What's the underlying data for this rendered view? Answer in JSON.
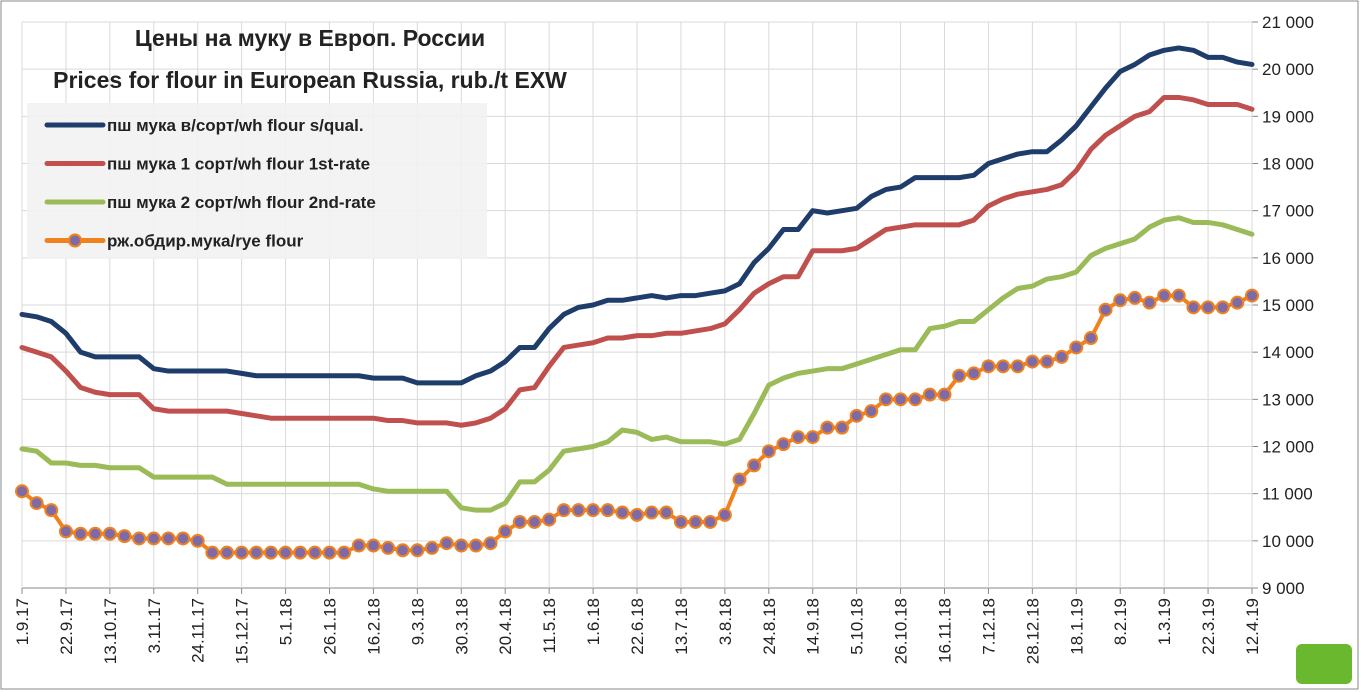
{
  "chart_data": {
    "type": "line",
    "title": "Цены на муку в Европ. России",
    "subtitle": "Prices for flour in European Russia, rub./t EXW",
    "categories": [
      "1.9.17",
      null,
      null,
      "22.9.17",
      null,
      null,
      "13.10.17",
      null,
      null,
      "3.11.17",
      null,
      null,
      "24.11.17",
      null,
      null,
      "15.12.17",
      null,
      null,
      "5.1.18",
      null,
      null,
      "26.1.18",
      null,
      null,
      "16.2.18",
      null,
      null,
      "9.3.18",
      null,
      null,
      "30.3.18",
      null,
      null,
      "20.4.18",
      null,
      null,
      "11.5.18",
      null,
      null,
      "1.6.18",
      null,
      null,
      "22.6.18",
      null,
      null,
      "13.7.18",
      null,
      null,
      "3.8.18",
      null,
      null,
      "24.8.18",
      null,
      null,
      "14.9.18",
      null,
      null,
      "5.10.18",
      null,
      null,
      "26.10.18",
      null,
      null,
      "16.11.18",
      null,
      null,
      "7.12.18",
      null,
      null,
      "28.12.18",
      null,
      null,
      "18.1.19",
      null,
      null,
      "8.2.19",
      null,
      null,
      "1.3.19",
      null,
      null,
      "22.3.19",
      null,
      null,
      "12.4.19"
    ],
    "series": [
      {
        "name": "пш мука в/сорт/wh flour s/qual.",
        "color": "#1f3d6b",
        "values": [
          14800,
          14750,
          14650,
          14400,
          14000,
          13900,
          13900,
          13900,
          13900,
          13650,
          13600,
          13600,
          13600,
          13600,
          13600,
          13550,
          13500,
          13500,
          13500,
          13500,
          13500,
          13500,
          13500,
          13500,
          13450,
          13450,
          13450,
          13350,
          13350,
          13350,
          13350,
          13500,
          13600,
          13800,
          14100,
          14100,
          14500,
          14800,
          14950,
          15000,
          15100,
          15100,
          15150,
          15200,
          15150,
          15200,
          15200,
          15250,
          15300,
          15450,
          15900,
          16200,
          16600,
          16600,
          17000,
          16950,
          17000,
          17050,
          17300,
          17450,
          17500,
          17700,
          17700,
          17700,
          17700,
          17750,
          18000,
          18100,
          18200,
          18250,
          18250,
          18500,
          18800,
          19200,
          19600,
          19950,
          20100,
          20300,
          20400,
          20450,
          20400,
          20250,
          20250,
          20150,
          20100
        ]
      },
      {
        "name": "пш мука 1 сорт/wh flour 1st-rate",
        "color": "#c0504d",
        "values": [
          14100,
          14000,
          13900,
          13600,
          13250,
          13150,
          13100,
          13100,
          13100,
          12800,
          12750,
          12750,
          12750,
          12750,
          12750,
          12700,
          12650,
          12600,
          12600,
          12600,
          12600,
          12600,
          12600,
          12600,
          12600,
          12550,
          12550,
          12500,
          12500,
          12500,
          12450,
          12500,
          12600,
          12800,
          13200,
          13250,
          13700,
          14100,
          14150,
          14200,
          14300,
          14300,
          14350,
          14350,
          14400,
          14400,
          14450,
          14500,
          14600,
          14900,
          15250,
          15450,
          15600,
          15600,
          16150,
          16150,
          16150,
          16200,
          16400,
          16600,
          16650,
          16700,
          16700,
          16700,
          16700,
          16800,
          17100,
          17250,
          17350,
          17400,
          17450,
          17550,
          17850,
          18300,
          18600,
          18800,
          19000,
          19100,
          19400,
          19400,
          19350,
          19250,
          19250,
          19250,
          19150
        ]
      },
      {
        "name": "пш мука 2 сорт/wh flour 2nd-rate",
        "color": "#9bbb59",
        "values": [
          11950,
          11900,
          11650,
          11650,
          11600,
          11600,
          11550,
          11550,
          11550,
          11350,
          11350,
          11350,
          11350,
          11350,
          11200,
          11200,
          11200,
          11200,
          11200,
          11200,
          11200,
          11200,
          11200,
          11200,
          11100,
          11050,
          11050,
          11050,
          11050,
          11050,
          10700,
          10650,
          10650,
          10800,
          11250,
          11250,
          11500,
          11900,
          11950,
          12000,
          12100,
          12350,
          12300,
          12150,
          12200,
          12100,
          12100,
          12100,
          12050,
          12150,
          12700,
          13300,
          13450,
          13550,
          13600,
          13650,
          13650,
          13750,
          13850,
          13950,
          14050,
          14050,
          14500,
          14550,
          14650,
          14650,
          14900,
          15150,
          15350,
          15400,
          15550,
          15600,
          15700,
          16050,
          16200,
          16300,
          16400,
          16650,
          16800,
          16850,
          16750,
          16750,
          16700,
          16600,
          16500
        ]
      },
      {
        "name": "рж.обдир.мука/rye flour",
        "color": "#f0821e",
        "marker_color": "#7f6aa8",
        "values": [
          11050,
          10800,
          10650,
          10200,
          10150,
          10150,
          10150,
          10100,
          10050,
          10050,
          10050,
          10050,
          10000,
          9750,
          9750,
          9750,
          9750,
          9750,
          9750,
          9750,
          9750,
          9750,
          9750,
          9900,
          9900,
          9850,
          9800,
          9800,
          9850,
          9950,
          9900,
          9900,
          9950,
          10200,
          10400,
          10400,
          10450,
          10650,
          10650,
          10650,
          10650,
          10600,
          10550,
          10600,
          10600,
          10400,
          10400,
          10400,
          10550,
          11300,
          11600,
          11900,
          12050,
          12200,
          12200,
          12400,
          12400,
          12650,
          12750,
          13000,
          13000,
          13000,
          13100,
          13100,
          13500,
          13550,
          13700,
          13700,
          13700,
          13800,
          13800,
          13900,
          14100,
          14300,
          14900,
          15100,
          15150,
          15050,
          15200,
          15200,
          14950,
          14950,
          14950,
          15050,
          15200
        ]
      }
    ],
    "ylim": [
      9000,
      21000
    ],
    "yticks": [
      {
        "value": 9000,
        "label": "9 000"
      },
      {
        "value": 10000,
        "label": "10 000"
      },
      {
        "value": 11000,
        "label": "11 000"
      },
      {
        "value": 12000,
        "label": "12 000"
      },
      {
        "value": 13000,
        "label": "13 000"
      },
      {
        "value": 14000,
        "label": "14 000"
      },
      {
        "value": 15000,
        "label": "15 000"
      },
      {
        "value": 16000,
        "label": "16 000"
      },
      {
        "value": 17000,
        "label": "17 000"
      },
      {
        "value": 18000,
        "label": "18 000"
      },
      {
        "value": 19000,
        "label": "19 000"
      },
      {
        "value": 20000,
        "label": "20 000"
      },
      {
        "value": 21000,
        "label": "21 000"
      }
    ],
    "grid": true,
    "legend": "upper left"
  }
}
